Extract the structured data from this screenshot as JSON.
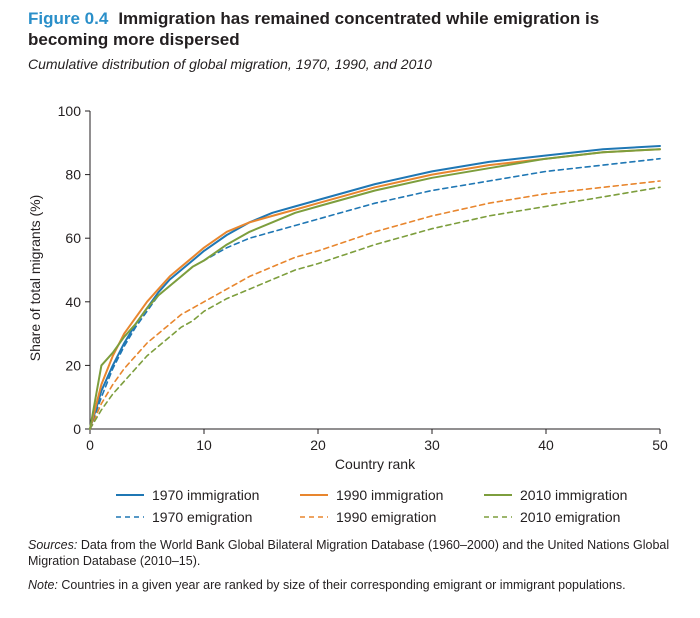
{
  "header": {
    "figure_label": "Figure 0.4",
    "title": "Immigration has remained concentrated while emigration is becoming more dispersed",
    "subtitle": "Cumulative distribution of global migration, 1970, 1990, and 2010"
  },
  "notes": {
    "sources_label": "Sources:",
    "sources_text": "Data from the World Bank Global Bilateral Migration Database (1960–2000) and the United Nations Global Migration Database (2010–15).",
    "note_label": "Note:",
    "note_text": "Countries in a given year are ranked by size of their corresponding emigrant or immigrant populations."
  },
  "chart_data": {
    "type": "line",
    "xlabel": "Country rank",
    "ylabel": "Share of total migrants (%)",
    "xlim": [
      0,
      50
    ],
    "ylim": [
      0,
      100
    ],
    "xticks": [
      0,
      10,
      20,
      30,
      40,
      50
    ],
    "yticks": [
      0,
      20,
      40,
      60,
      80,
      100
    ],
    "grid": false,
    "legend_position": "bottom",
    "x": [
      0,
      1,
      2,
      3,
      4,
      5,
      6,
      7,
      8,
      9,
      10,
      12,
      14,
      16,
      18,
      20,
      25,
      30,
      35,
      40,
      45,
      50
    ],
    "series": [
      {
        "name": "1970 immigration",
        "color": "#1f77b4",
        "dash": "solid",
        "values": [
          0,
          12,
          20,
          27,
          33,
          38,
          43,
          47,
          50,
          53,
          56,
          61,
          65,
          68,
          70,
          72,
          77,
          81,
          84,
          86,
          88,
          89
        ]
      },
      {
        "name": "1990 immigration",
        "color": "#e8862e",
        "dash": "solid",
        "values": [
          0,
          14,
          23,
          30,
          35,
          40,
          44,
          48,
          51,
          54,
          57,
          62,
          65,
          67,
          69,
          71,
          76,
          80,
          83,
          85,
          87,
          88
        ]
      },
      {
        "name": "2010 immigration",
        "color": "#7d9e3d",
        "dash": "solid",
        "values": [
          0,
          20,
          24,
          29,
          33,
          38,
          42,
          45,
          48,
          51,
          53,
          58,
          62,
          65,
          68,
          70,
          75,
          79,
          82,
          85,
          87,
          88
        ]
      },
      {
        "name": "1970 emigration",
        "color": "#1f77b4",
        "dash": "dashed",
        "values": [
          0,
          10,
          19,
          26,
          32,
          37,
          42,
          45,
          48,
          51,
          53,
          57,
          60,
          62,
          64,
          66,
          71,
          75,
          78,
          81,
          83,
          85
        ]
      },
      {
        "name": "1990 emigration",
        "color": "#e8862e",
        "dash": "dashed",
        "values": [
          0,
          8,
          14,
          19,
          23,
          27,
          30,
          33,
          36,
          38,
          40,
          44,
          48,
          51,
          54,
          56,
          62,
          67,
          71,
          74,
          76,
          78
        ]
      },
      {
        "name": "2010 emigration",
        "color": "#7d9e3d",
        "dash": "dashed",
        "values": [
          0,
          6,
          11,
          15,
          19,
          23,
          26,
          29,
          32,
          34,
          37,
          41,
          44,
          47,
          50,
          52,
          58,
          63,
          67,
          70,
          73,
          76
        ]
      }
    ]
  }
}
